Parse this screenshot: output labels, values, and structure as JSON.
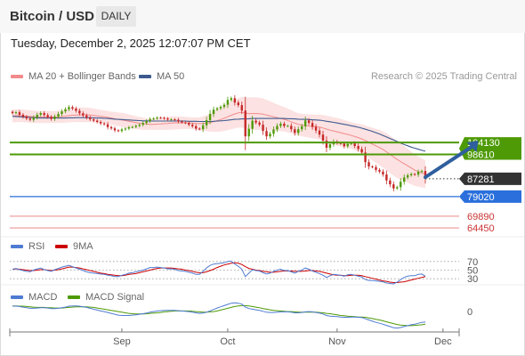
{
  "header": {
    "title": "Bitcoin / USD",
    "timeframe": "DAILY"
  },
  "timestamp": "Tuesday, December 2, 2025 12:07:07 PM CET",
  "credit": "Research © 2025 Trading Central",
  "colors": {
    "ma20": "#f28a8a",
    "ma50": "#3d5a8f",
    "band": "#fbd8d8",
    "resistance": "#4e9a06",
    "support": "#2a6fdb",
    "target": "#e05555",
    "rsi": "#4f7bd3",
    "rsi_ma": "#cc0000",
    "macd": "#4f7bd3",
    "signal": "#4e9a06",
    "up": "#4e9a06",
    "down": "#c62828"
  },
  "chart_data": [
    {
      "type": "candlestick",
      "legend": [
        "MA 20 + Bollinger Bands",
        "MA 50"
      ],
      "x_tick_labels": [
        "Sep",
        "Oct",
        "Nov",
        "Dec"
      ],
      "ylim": [
        62000,
        129000
      ],
      "levels": [
        {
          "label": "104130",
          "value": 104130,
          "kind": "resistance"
        },
        {
          "label": "98610",
          "value": 98610,
          "kind": "resistance"
        },
        {
          "label": "87281",
          "value": 87281,
          "kind": "last"
        },
        {
          "label": "79020",
          "value": 79020,
          "kind": "support"
        },
        {
          "label": "69890",
          "value": 69890,
          "kind": "target"
        },
        {
          "label": "64450",
          "value": 64450,
          "kind": "target"
        }
      ],
      "arrow": {
        "from": {
          "bar": 117,
          "value": 88000
        },
        "to": {
          "bar": 132,
          "value": 105000
        }
      },
      "tick_bars": [
        31,
        61,
        92,
        122
      ],
      "close": [
        117800,
        118200,
        117000,
        116100,
        115300,
        114700,
        115800,
        117000,
        117800,
        116900,
        116000,
        115100,
        116200,
        117400,
        118600,
        119600,
        120600,
        119900,
        118900,
        117700,
        116700,
        115700,
        114900,
        114300,
        113700,
        113000,
        112600,
        111300,
        110700,
        109800,
        109500,
        110200,
        110600,
        111200,
        111400,
        111900,
        112400,
        113200,
        114100,
        115000,
        115300,
        115700,
        115600,
        115300,
        114800,
        114900,
        114700,
        113900,
        113500,
        113200,
        112400,
        111700,
        110600,
        110300,
        112100,
        114500,
        117400,
        119400,
        120000,
        120700,
        121700,
        123900,
        124700,
        122700,
        121500,
        119000,
        107000,
        110500,
        114300,
        113400,
        112400,
        109500,
        107000,
        108200,
        110200,
        111800,
        112900,
        111800,
        111900,
        110300,
        108600,
        110300,
        111700,
        114400,
        113200,
        111400,
        109700,
        107800,
        105000,
        101700,
        103300,
        104600,
        103900,
        103600,
        102400,
        103500,
        103700,
        102500,
        101100,
        99500,
        95000,
        93000,
        92700,
        91400,
        90600,
        89300,
        86500,
        84700,
        82800,
        83400,
        85900,
        87900,
        88900,
        89500,
        89200,
        90500,
        90900,
        87281
      ],
      "ma20": [
        116500,
        116600,
        116600,
        116500,
        116400,
        116200,
        116100,
        116000,
        116000,
        116000,
        116000,
        116000,
        116000,
        116100,
        116200,
        116400,
        116600,
        116800,
        116900,
        117000,
        117000,
        117000,
        116900,
        116700,
        116500,
        116300,
        116100,
        115800,
        115500,
        115200,
        114900,
        114600,
        114300,
        114000,
        113700,
        113400,
        113100,
        112900,
        112700,
        112600,
        112600,
        112700,
        112800,
        112900,
        113000,
        113200,
        113300,
        113300,
        113300,
        113300,
        113200,
        113100,
        113000,
        112900,
        113000,
        113100,
        113400,
        113800,
        114300,
        114800,
        115400,
        116100,
        116800,
        117400,
        117900,
        118200,
        117800,
        117600,
        117600,
        117600,
        117500,
        117300,
        116900,
        116500,
        116100,
        115700,
        115300,
        114900,
        114400,
        113800,
        113100,
        112600,
        112200,
        112000,
        111800,
        111600,
        111500,
        111300,
        110900,
        110400,
        109900,
        109500,
        109100,
        108700,
        108300,
        107900,
        107400,
        106900,
        106400,
        105800,
        105000,
        104200,
        103400,
        102600,
        101800,
        100900,
        99800,
        98600,
        97400,
        96300,
        95300,
        94300,
        93300,
        92300,
        91300,
        90600,
        90000,
        89400
      ],
      "ma50": [
        116300,
        116200,
        116100,
        116000,
        115900,
        115800,
        115700,
        115600,
        115500,
        115500,
        115500,
        115500,
        115500,
        115500,
        115500,
        115500,
        115600,
        115600,
        115700,
        115700,
        115700,
        115700,
        115700,
        115600,
        115500,
        115500,
        115400,
        115300,
        115200,
        115000,
        114900,
        114800,
        114700,
        114600,
        114500,
        114400,
        114300,
        114200,
        114200,
        114100,
        114100,
        114100,
        114100,
        114100,
        114100,
        114100,
        114100,
        114100,
        114100,
        114100,
        114000,
        114000,
        114000,
        113900,
        113900,
        113900,
        113900,
        114000,
        114100,
        114200,
        114300,
        114500,
        114700,
        114900,
        115000,
        115100,
        115100,
        115200,
        115300,
        115300,
        115300,
        115300,
        115300,
        115300,
        115300,
        115300,
        115300,
        115300,
        115200,
        115200,
        115100,
        115000,
        114900,
        114900,
        114800,
        114700,
        114600,
        114500,
        114300,
        114000,
        113800,
        113500,
        113200,
        112900,
        112600,
        112300,
        111900,
        111600,
        111200,
        110800,
        110300,
        109800,
        109300,
        108700,
        108100,
        107400,
        106700,
        106000,
        105300,
        104600,
        103900,
        103200,
        102600,
        102000,
        101500,
        101000,
        100500,
        100100
      ],
      "bb_width": [
        3000,
        3000,
        3000,
        2900,
        2900,
        2900,
        2900,
        2800,
        2800,
        2800,
        2800,
        2800,
        2800,
        2800,
        2900,
        3000,
        3100,
        3200,
        3300,
        3400,
        3400,
        3400,
        3300,
        3200,
        3100,
        3000,
        3000,
        3000,
        3000,
        3100,
        3200,
        3300,
        3300,
        3200,
        3100,
        3000,
        2900,
        2800,
        2700,
        2600,
        2600,
        2700,
        2800,
        2900,
        3000,
        3100,
        3100,
        3000,
        2900,
        2800,
        2700,
        2700,
        2800,
        3000,
        3300,
        3700,
        4200,
        4700,
        5200,
        5600,
        5900,
        6200,
        6500,
        6700,
        6900,
        7100,
        7300,
        7500,
        7600,
        7600,
        7500,
        7300,
        7100,
        6800,
        6500,
        6200,
        5900,
        5700,
        5500,
        5400,
        5300,
        5200,
        5200,
        5300,
        5400,
        5500,
        5600,
        5800,
        6000,
        6200,
        6300,
        6400,
        6400,
        6400,
        6300,
        6200,
        6200,
        6300,
        6500,
        6700,
        7000,
        7300,
        7600,
        7900,
        8200,
        8400,
        8600,
        8700,
        8700,
        8600,
        8400,
        8200,
        7900,
        7600,
        7300,
        7000,
        6700,
        6400
      ]
    },
    {
      "type": "line",
      "legend": [
        "RSI",
        "9MA"
      ],
      "y_tick_labels": [
        "70",
        "50",
        "30"
      ],
      "ylim": [
        20,
        80
      ],
      "rsi": [
        52,
        54,
        51,
        49,
        47,
        46,
        50,
        53,
        55,
        51,
        49,
        47,
        51,
        54,
        57,
        59,
        61,
        58,
        55,
        52,
        49,
        46,
        44,
        43,
        42,
        41,
        40,
        38,
        37,
        35,
        35,
        38,
        40,
        43,
        44,
        46,
        48,
        50,
        53,
        56,
        56,
        57,
        56,
        55,
        53,
        53,
        52,
        49,
        48,
        47,
        45,
        43,
        40,
        40,
        47,
        55,
        61,
        64,
        65,
        66,
        67,
        70,
        71,
        64,
        59,
        52,
        35,
        43,
        51,
        49,
        48,
        44,
        41,
        43,
        47,
        50,
        52,
        49,
        49,
        46,
        43,
        47,
        50,
        55,
        52,
        48,
        45,
        42,
        38,
        33,
        37,
        40,
        39,
        38,
        36,
        39,
        40,
        38,
        36,
        34,
        28,
        26,
        26,
        25,
        24,
        23,
        20,
        19,
        18,
        22,
        28,
        33,
        36,
        37,
        37,
        40,
        41,
        36
      ],
      "ma": [
        52,
        53,
        52,
        51,
        50,
        49,
        49,
        50,
        51,
        51,
        50,
        49,
        50,
        51,
        53,
        55,
        57,
        57,
        56,
        55,
        53,
        51,
        49,
        47,
        45,
        43,
        42,
        40,
        39,
        38,
        37,
        37,
        38,
        40,
        41,
        42,
        44,
        46,
        48,
        50,
        52,
        54,
        55,
        55,
        55,
        55,
        54,
        53,
        52,
        50,
        49,
        47,
        45,
        44,
        44,
        46,
        49,
        52,
        56,
        59,
        62,
        64,
        66,
        67,
        66,
        63,
        58,
        54,
        52,
        50,
        49,
        47,
        46,
        45,
        45,
        46,
        47,
        48,
        48,
        48,
        47,
        47,
        47,
        48,
        49,
        49,
        48,
        47,
        45,
        43,
        41,
        39,
        38,
        38,
        37,
        37,
        38,
        38,
        38,
        37,
        35,
        33,
        31,
        29,
        27,
        25,
        24,
        22,
        21,
        21,
        22,
        23,
        25,
        27,
        29,
        31,
        33,
        35
      ]
    },
    {
      "type": "line",
      "legend": [
        "MACD",
        "MACD Signal"
      ],
      "y_tick_labels": [
        "0"
      ],
      "ylim": [
        -6500,
        3000
      ],
      "macd": [
        1800,
        1800,
        1700,
        1500,
        1300,
        1100,
        1100,
        1200,
        1300,
        1300,
        1200,
        1000,
        1000,
        1100,
        1300,
        1500,
        1800,
        1900,
        1900,
        1800,
        1600,
        1400,
        1100,
        800,
        500,
        200,
        0,
        -300,
        -600,
        -900,
        -1200,
        -1300,
        -1300,
        -1300,
        -1200,
        -1100,
        -900,
        -700,
        -500,
        -200,
        0,
        200,
        300,
        400,
        400,
        400,
        400,
        300,
        200,
        100,
        0,
        -200,
        -400,
        -600,
        -500,
        -200,
        200,
        700,
        1200,
        1600,
        2000,
        2400,
        2800,
        2900,
        2800,
        2500,
        1500,
        1000,
        800,
        600,
        400,
        100,
        -200,
        -300,
        -300,
        -200,
        -100,
        -100,
        -100,
        -200,
        -400,
        -400,
        -300,
        -100,
        0,
        -100,
        -300,
        -500,
        -800,
        -1300,
        -1500,
        -1600,
        -1700,
        -1800,
        -1900,
        -1900,
        -1800,
        -1800,
        -1900,
        -2000,
        -2400,
        -2800,
        -3200,
        -3600,
        -3900,
        -4200,
        -4600,
        -5000,
        -5400,
        -5500,
        -5300,
        -5000,
        -4700,
        -4400,
        -4200,
        -3900,
        -3600,
        -3500
      ],
      "signal": [
        1900,
        1900,
        1800,
        1800,
        1700,
        1600,
        1500,
        1400,
        1400,
        1400,
        1300,
        1300,
        1200,
        1200,
        1200,
        1300,
        1400,
        1500,
        1600,
        1600,
        1600,
        1600,
        1500,
        1400,
        1200,
        1000,
        800,
        600,
        400,
        200,
        0,
        -200,
        -400,
        -600,
        -700,
        -800,
        -800,
        -800,
        -700,
        -600,
        -500,
        -400,
        -300,
        -100,
        0,
        100,
        200,
        200,
        200,
        200,
        200,
        100,
        0,
        -100,
        -200,
        -200,
        -100,
        0,
        200,
        500,
        800,
        1100,
        1400,
        1700,
        1900,
        2000,
        2000,
        1900,
        1700,
        1500,
        1300,
        1000,
        800,
        600,
        400,
        300,
        200,
        100,
        0,
        0,
        -100,
        -200,
        -200,
        -200,
        -200,
        -200,
        -200,
        -300,
        -400,
        -600,
        -700,
        -900,
        -1100,
        -1300,
        -1400,
        -1500,
        -1600,
        -1700,
        -1800,
        -1800,
        -1900,
        -2100,
        -2300,
        -2600,
        -2800,
        -3100,
        -3400,
        -3700,
        -4000,
        -4300,
        -4500,
        -4600,
        -4700,
        -4700,
        -4600,
        -4500,
        -4400,
        -4200
      ]
    }
  ]
}
